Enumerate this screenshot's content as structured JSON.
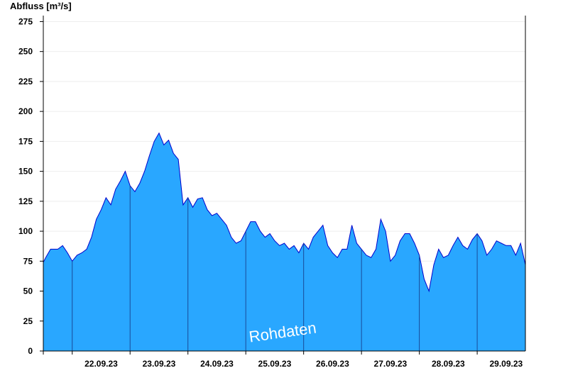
{
  "chart_data": {
    "type": "area",
    "ylabel": "Abfluss [m³/s]",
    "watermark": "Rohdaten",
    "ylim": [
      0,
      280
    ],
    "yticks": [
      0,
      25,
      50,
      75,
      100,
      125,
      150,
      175,
      200,
      225,
      250,
      275
    ],
    "xlim": [
      "2023-09-21 12:00",
      "2023-09-29 20:00"
    ],
    "day_labels": [
      "22.09.23",
      "23.09.23",
      "24.09.23",
      "25.09.23",
      "26.09.23",
      "27.09.23",
      "28.09.23",
      "29.09.23"
    ],
    "day_boundaries": [
      "2023-09-22 00:00",
      "2023-09-23 00:00",
      "2023-09-24 00:00",
      "2023-09-25 00:00",
      "2023-09-26 00:00",
      "2023-09-27 00:00",
      "2023-09-28 00:00",
      "2023-09-29 00:00"
    ],
    "grid": true,
    "colors": {
      "fill": "#29a7ff",
      "line": "#0000cc"
    },
    "series": [
      {
        "x": [
          "2023-09-21 12:00",
          "2023-09-21 13:00",
          "2023-09-21 15:00",
          "2023-09-21 18:00",
          "2023-09-21 20:00",
          "2023-09-21 22:00",
          "2023-09-22 00:00",
          "2023-09-22 02:00",
          "2023-09-22 04:00",
          "2023-09-22 06:00",
          "2023-09-22 08:00",
          "2023-09-22 10:00",
          "2023-09-22 12:00",
          "2023-09-22 14:00",
          "2023-09-22 16:00",
          "2023-09-22 18:00",
          "2023-09-22 20:00",
          "2023-09-22 22:00",
          "2023-09-23 00:00",
          "2023-09-23 02:00",
          "2023-09-23 04:00",
          "2023-09-23 06:00",
          "2023-09-23 08:00",
          "2023-09-23 10:00",
          "2023-09-23 12:00",
          "2023-09-23 14:00",
          "2023-09-23 16:00",
          "2023-09-23 18:00",
          "2023-09-23 20:00",
          "2023-09-23 22:00",
          "2023-09-24 00:00",
          "2023-09-24 02:00",
          "2023-09-24 04:00",
          "2023-09-24 06:00",
          "2023-09-24 08:00",
          "2023-09-24 10:00",
          "2023-09-24 12:00",
          "2023-09-24 14:00",
          "2023-09-24 16:00",
          "2023-09-24 18:00",
          "2023-09-24 20:00",
          "2023-09-24 22:00",
          "2023-09-25 00:00",
          "2023-09-25 02:00",
          "2023-09-25 04:00",
          "2023-09-25 06:00",
          "2023-09-25 08:00",
          "2023-09-25 10:00",
          "2023-09-25 12:00",
          "2023-09-25 14:00",
          "2023-09-25 16:00",
          "2023-09-25 18:00",
          "2023-09-25 20:00",
          "2023-09-25 22:00",
          "2023-09-26 00:00",
          "2023-09-26 02:00",
          "2023-09-26 04:00",
          "2023-09-26 06:00",
          "2023-09-26 08:00",
          "2023-09-26 10:00",
          "2023-09-26 12:00",
          "2023-09-26 14:00",
          "2023-09-26 16:00",
          "2023-09-26 18:00",
          "2023-09-26 20:00",
          "2023-09-26 22:00",
          "2023-09-27 00:00",
          "2023-09-27 02:00",
          "2023-09-27 04:00",
          "2023-09-27 06:00",
          "2023-09-27 08:00",
          "2023-09-27 10:00",
          "2023-09-27 12:00",
          "2023-09-27 14:00",
          "2023-09-27 16:00",
          "2023-09-27 18:00",
          "2023-09-27 20:00",
          "2023-09-27 22:00",
          "2023-09-28 00:00",
          "2023-09-28 02:00",
          "2023-09-28 04:00",
          "2023-09-28 06:00",
          "2023-09-28 08:00",
          "2023-09-28 10:00",
          "2023-09-28 12:00",
          "2023-09-28 14:00",
          "2023-09-28 16:00",
          "2023-09-28 18:00",
          "2023-09-28 20:00",
          "2023-09-28 22:00",
          "2023-09-29 00:00",
          "2023-09-29 02:00",
          "2023-09-29 04:00",
          "2023-09-29 06:00",
          "2023-09-29 08:00",
          "2023-09-29 10:00",
          "2023-09-29 12:00",
          "2023-09-29 14:00",
          "2023-09-29 16:00",
          "2023-09-29 18:00",
          "2023-09-29 20:00"
        ],
        "values": [
          74,
          78,
          85,
          85,
          88,
          82,
          75,
          80,
          82,
          85,
          95,
          110,
          118,
          128,
          122,
          135,
          142,
          150,
          138,
          133,
          140,
          150,
          163,
          175,
          182,
          172,
          176,
          165,
          160,
          122,
          128,
          120,
          127,
          128,
          118,
          113,
          115,
          110,
          105,
          95,
          90,
          92,
          100,
          108,
          108,
          100,
          95,
          98,
          92,
          88,
          90,
          85,
          88,
          82,
          90,
          85,
          95,
          100,
          105,
          88,
          82,
          78,
          85,
          85,
          105,
          90,
          85,
          80,
          78,
          85,
          110,
          100,
          75,
          80,
          92,
          98,
          98,
          90,
          80,
          60,
          50,
          72,
          85,
          78,
          80,
          88,
          95,
          88,
          85,
          93,
          98,
          92,
          80,
          85,
          92,
          90,
          88,
          88,
          80,
          90,
          72
        ]
      }
    ]
  }
}
